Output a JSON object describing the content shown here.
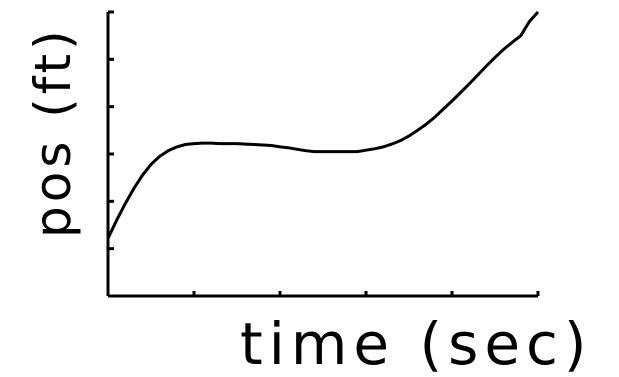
{
  "chart_data": {
    "type": "line",
    "title": "",
    "xlabel": "time (sec)",
    "ylabel": "pos (ft)",
    "xlim": [
      0,
      5
    ],
    "ylim": [
      0,
      6
    ],
    "grid": false,
    "x_tick_count": 5,
    "y_tick_count": 6,
    "series": [
      {
        "x": [
          0,
          0.1,
          0.2,
          0.3,
          0.4,
          0.5,
          0.6,
          0.7,
          0.8,
          0.9,
          1.0,
          1.1,
          1.2,
          1.3,
          1.4,
          1.5,
          1.6,
          1.7,
          1.8,
          1.9,
          2.0,
          2.1,
          2.2,
          2.3,
          2.4,
          2.5,
          2.6,
          2.7,
          2.8,
          2.9,
          3.0,
          3.1,
          3.2,
          3.3,
          3.4,
          3.5,
          3.6,
          3.7,
          3.8,
          3.9,
          4.0,
          4.1,
          4.2,
          4.3,
          4.4,
          4.5,
          4.6,
          4.7,
          4.8,
          4.9,
          5.0
        ],
        "values": [
          1.22,
          1.6,
          1.95,
          2.27,
          2.55,
          2.78,
          2.95,
          3.07,
          3.15,
          3.2,
          3.22,
          3.23,
          3.23,
          3.22,
          3.22,
          3.22,
          3.21,
          3.2,
          3.19,
          3.18,
          3.15,
          3.13,
          3.1,
          3.07,
          3.05,
          3.05,
          3.05,
          3.05,
          3.05,
          3.05,
          3.08,
          3.11,
          3.15,
          3.21,
          3.28,
          3.38,
          3.5,
          3.63,
          3.78,
          3.95,
          4.12,
          4.3,
          4.48,
          4.67,
          4.86,
          5.04,
          5.21,
          5.36,
          5.5,
          5.8,
          6.0
        ]
      }
    ]
  }
}
